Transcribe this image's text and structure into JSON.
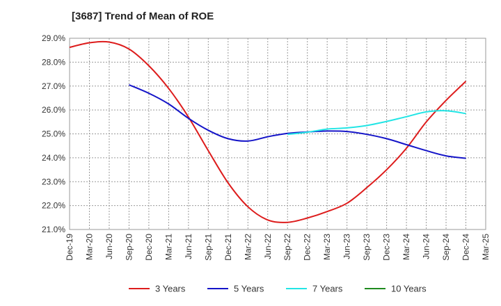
{
  "chart_data": {
    "type": "line",
    "title": "[3687]  Trend of Mean of ROE",
    "xlabel": "",
    "ylabel": "",
    "ylim": [
      21.0,
      29.0
    ],
    "yticks": [
      "21.0%",
      "22.0%",
      "23.0%",
      "24.0%",
      "25.0%",
      "26.0%",
      "27.0%",
      "28.0%",
      "29.0%"
    ],
    "x_ticks": [
      "Dec-19",
      "Mar-20",
      "Jun-20",
      "Sep-20",
      "Dec-20",
      "Mar-21",
      "Jun-21",
      "Sep-21",
      "Dec-21",
      "Mar-22",
      "Jun-22",
      "Sep-22",
      "Dec-22",
      "Mar-23",
      "Jun-23",
      "Sep-23",
      "Dec-23",
      "Mar-24",
      "Jun-24",
      "Sep-24",
      "Dec-24",
      "Mar-25"
    ],
    "grid": true,
    "legend_position": "bottom",
    "series": [
      {
        "name": "3 Years",
        "color": "#dd1c1c",
        "values": [
          28.62,
          28.81,
          28.84,
          28.55,
          27.85,
          26.9,
          25.7,
          24.3,
          22.95,
          21.95,
          21.4,
          21.3,
          21.48,
          21.75,
          22.1,
          22.75,
          23.5,
          24.4,
          25.5,
          26.4,
          27.2,
          null
        ]
      },
      {
        "name": "5 Years",
        "color": "#1414c8",
        "values": [
          null,
          null,
          null,
          27.05,
          26.7,
          26.25,
          25.65,
          25.15,
          24.8,
          24.7,
          24.88,
          25.02,
          25.08,
          25.12,
          25.1,
          24.98,
          24.8,
          24.55,
          24.3,
          24.08,
          23.98,
          null
        ]
      },
      {
        "name": "7 Years",
        "color": "#22e5e5",
        "values": [
          null,
          null,
          null,
          null,
          null,
          null,
          null,
          null,
          null,
          null,
          null,
          24.98,
          25.07,
          25.2,
          25.25,
          25.35,
          25.52,
          25.72,
          25.92,
          25.97,
          25.85,
          null
        ]
      },
      {
        "name": "10 Years",
        "color": "#1e8a1e",
        "values": [
          null,
          null,
          null,
          null,
          null,
          null,
          null,
          null,
          null,
          null,
          null,
          null,
          null,
          null,
          null,
          null,
          null,
          null,
          null,
          null,
          null,
          null
        ]
      }
    ]
  }
}
